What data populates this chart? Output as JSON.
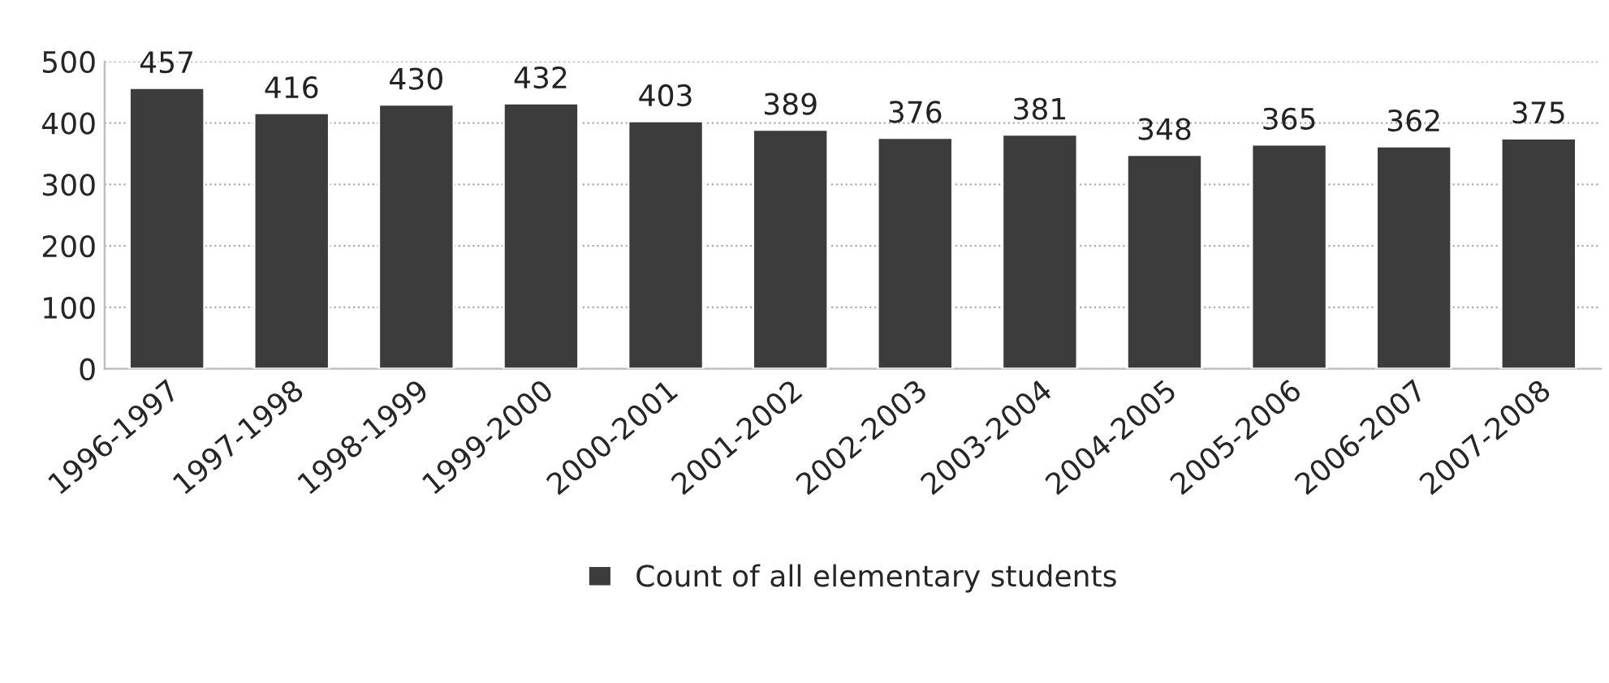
{
  "chart_data": {
    "type": "bar",
    "categories": [
      "1996-1997",
      "1997-1998",
      "1998-1999",
      "1999-2000",
      "2000-2001",
      "2001-2002",
      "2002-2003",
      "2003-2004",
      "2004-2005",
      "2005-2006",
      "2006-2007",
      "2007-2008"
    ],
    "series": [
      {
        "name": "Count of all elementary students",
        "color": "#3c3c3c",
        "values": [
          457,
          416,
          430,
          432,
          403,
          389,
          376,
          381,
          348,
          365,
          362,
          375
        ]
      }
    ],
    "ylim": [
      0,
      500
    ],
    "yticks": [
      0,
      100,
      200,
      300,
      400,
      500
    ],
    "grid": "y",
    "data_labels": true,
    "legend": "bottom"
  }
}
